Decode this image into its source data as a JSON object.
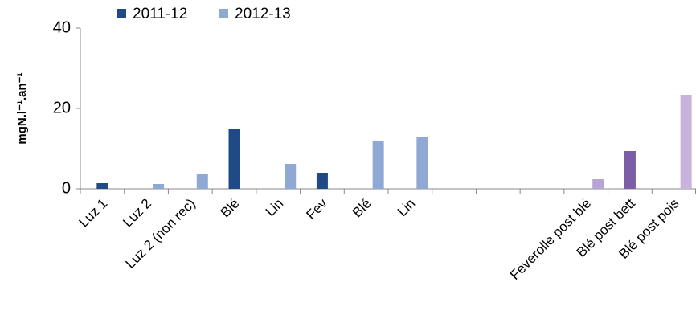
{
  "chart_data": {
    "type": "bar",
    "ylabel": "mgN.l⁻¹.an⁻¹",
    "categories": [
      "Luz 1",
      "Luz 2",
      "Luz 2 (non rec)",
      "Blé",
      "Lin",
      "Fev",
      "Blé",
      "Lin",
      null,
      null,
      null,
      "Féverolle post blé",
      "Blé post bett",
      "Blé post pois"
    ],
    "series": [
      {
        "name": "2011-12",
        "color": "#1f4a85",
        "colors": [
          "#1f4a85",
          "#1f4a85",
          "#1f4a85",
          "#1f4a85",
          "#1f4a85",
          "#1f4a85",
          "#1f4a85",
          "#1f4a85",
          "#1f4a85",
          "#1f4a85",
          "#1f4a85",
          "#1f4a85",
          "#7b5ea7",
          "#7b5ea7"
        ],
        "values": [
          1.4,
          null,
          null,
          15,
          null,
          4,
          null,
          null,
          null,
          null,
          null,
          null,
          9.4,
          null
        ]
      },
      {
        "name": "2012-13",
        "color": "#8fa8d4",
        "colors": [
          "#8fa8d4",
          "#8fa8d4",
          "#8fa8d4",
          "#8fa8d4",
          "#8fa8d4",
          "#8fa8d4",
          "#8fa8d4",
          "#8fa8d4",
          "#8fa8d4",
          "#8fa8d4",
          "#8fa8d4",
          "#b8a5d6",
          "#b8a5d6",
          "#c9b3dd"
        ],
        "values": [
          null,
          1.2,
          3.6,
          null,
          6.2,
          null,
          12,
          13,
          null,
          null,
          null,
          2.4,
          null,
          23.4
        ]
      }
    ],
    "ylim": [
      0,
      40
    ],
    "yticks": [
      0,
      20,
      40
    ],
    "legend": "top"
  }
}
